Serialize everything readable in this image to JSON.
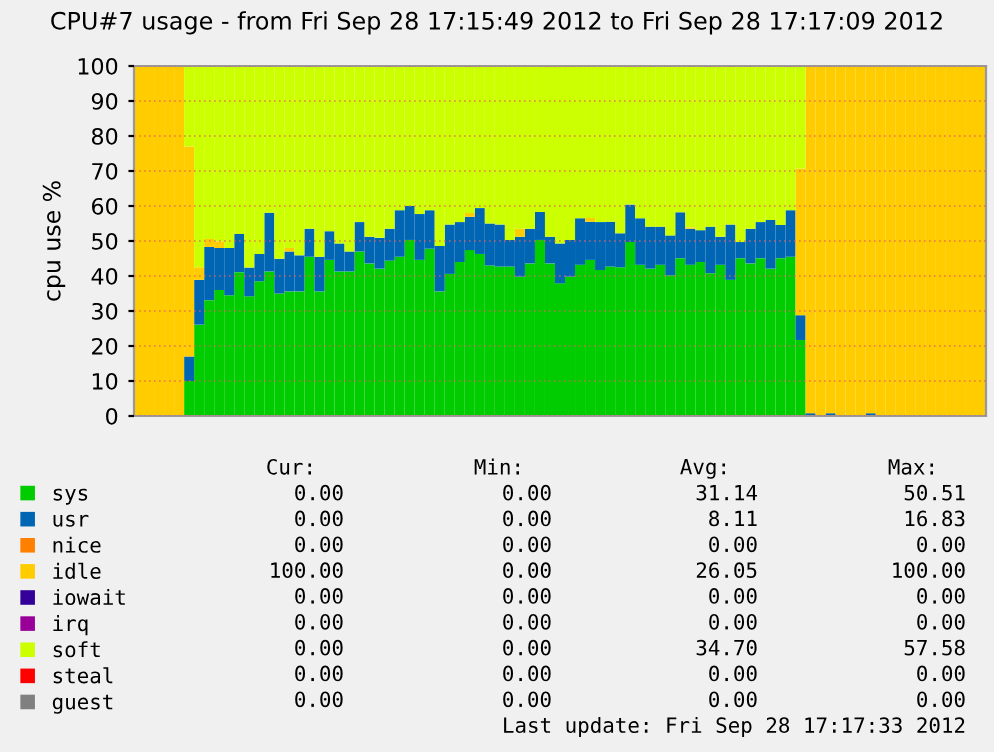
{
  "chart_data": {
    "type": "bar",
    "stacked": true,
    "title": "CPU#7 usage - from Fri Sep 28 17:15:49 2012 to Fri Sep 28 17:17:09 2012",
    "ylabel": "cpu use %",
    "categories": [
      null,
      null,
      null,
      null,
      null,
      null,
      null,
      null,
      null,
      null,
      null,
      null,
      null,
      null,
      null,
      null,
      null,
      null,
      null,
      null,
      null,
      null,
      null,
      null,
      null,
      null,
      null,
      null,
      null,
      null,
      null,
      null,
      null,
      null,
      null,
      null,
      null,
      null,
      null,
      null,
      null,
      null,
      null,
      null,
      null,
      null,
      null,
      null,
      null,
      null,
      null,
      null,
      null,
      null,
      null,
      null,
      null,
      null,
      null,
      null,
      null,
      null,
      null,
      null,
      null,
      null,
      null,
      null,
      null,
      null,
      null,
      null,
      null,
      null,
      null,
      null,
      null,
      null,
      null,
      null,
      null,
      null,
      null,
      null,
      null
    ],
    "ylim": [
      0,
      100
    ],
    "yticks": [
      0,
      10,
      20,
      30,
      40,
      50,
      60,
      70,
      80,
      90,
      100
    ],
    "grid": "y",
    "legend": "bottom left",
    "series": [
      {
        "name": "sys",
        "color": "#00cc00",
        "values": [
          0,
          0,
          0,
          0,
          0,
          10,
          26.1,
          33.1,
          36.0,
          34.5,
          41.1,
          34.2,
          38.5,
          41.3,
          35.0,
          35.6,
          35.6,
          45.5,
          35.6,
          44.6,
          41.3,
          41.3,
          47.0,
          43.6,
          42.1,
          44.4,
          45.5,
          50.3,
          44.6,
          47.8,
          35.6,
          40.6,
          44.0,
          47.4,
          46.3,
          43.0,
          42.7,
          42.7,
          39.8,
          43.6,
          50.3,
          43.6,
          37.9,
          39.8,
          43.2,
          44.6,
          41.7,
          42.7,
          42.5,
          49.7,
          43.2,
          42.1,
          43.2,
          40.2,
          45.1,
          43.2,
          44.0,
          40.8,
          43.2,
          38.9,
          45.1,
          43.6,
          45.1,
          42.1,
          45.1,
          45.5,
          21.7,
          0,
          0,
          0,
          0,
          0,
          0,
          0,
          0,
          0,
          0,
          0,
          0,
          0,
          0,
          0,
          0,
          0,
          0
        ]
      },
      {
        "name": "usr",
        "color": "#0066b3",
        "values": [
          0,
          0,
          0,
          0,
          0,
          7,
          12.8,
          15.2,
          12.0,
          13.5,
          10.9,
          8.2,
          7.8,
          16.8,
          9.9,
          11.4,
          10.3,
          8.0,
          9.9,
          8.2,
          8.0,
          5.7,
          8.4,
          7.6,
          8.8,
          9.1,
          13.3,
          9.7,
          13.1,
          11.0,
          13.0,
          14.1,
          11.4,
          9.5,
          13.1,
          12.0,
          12.0,
          7.6,
          11.4,
          9.9,
          8.0,
          7.6,
          11.4,
          10.5,
          13.3,
          10.9,
          13.7,
          12.8,
          9.7,
          10.7,
          13.3,
          12.0,
          10.9,
          11.4,
          13.1,
          10.3,
          9.1,
          13.3,
          8.0,
          15.8,
          4.6,
          9.9,
          10.3,
          13.9,
          9.5,
          13.3,
          7.1,
          0.8,
          0,
          0.8,
          0,
          0,
          0,
          0.8,
          0,
          0,
          0,
          0,
          0,
          0,
          0,
          0,
          0,
          0,
          0
        ]
      },
      {
        "name": "nice",
        "color": "#ff8000",
        "values": [
          0,
          0,
          0,
          0,
          0,
          0,
          0,
          0,
          0,
          0,
          0,
          0,
          0,
          0,
          0,
          0,
          0,
          0,
          0,
          0,
          0,
          0,
          0,
          0,
          0,
          0,
          0,
          0,
          0,
          0,
          0,
          0,
          0,
          0,
          0,
          0,
          0,
          0,
          0,
          0,
          0,
          0,
          0,
          0,
          0,
          0,
          0,
          0,
          0,
          0,
          0,
          0,
          0,
          0,
          0,
          0,
          0,
          0,
          0,
          0,
          0,
          0,
          0,
          0,
          0,
          0,
          0,
          0,
          0,
          0,
          0,
          0,
          0,
          0,
          0,
          0,
          0,
          0,
          0,
          0,
          0,
          0,
          0,
          0,
          0
        ]
      },
      {
        "name": "idle",
        "color": "#ffcc00",
        "values": [
          100,
          100,
          100,
          100,
          100,
          60,
          3.6,
          2.3,
          1.9,
          0,
          0,
          0,
          0,
          0,
          0,
          1.0,
          0,
          0,
          0,
          0,
          0,
          0,
          0,
          0,
          0,
          0,
          0,
          0,
          0,
          0,
          0,
          0,
          0,
          1.1,
          0,
          0,
          0,
          0,
          2.3,
          0,
          0,
          0,
          0,
          0,
          0,
          1.1,
          0,
          0,
          0,
          0,
          0,
          0,
          0,
          0,
          0,
          0.4,
          0,
          0,
          0,
          0,
          0,
          0,
          0,
          0,
          0,
          0,
          41.9,
          99.2,
          100,
          99.2,
          100,
          100,
          100,
          99.2,
          100,
          100,
          100,
          100,
          100,
          100,
          100,
          100,
          100,
          100,
          100
        ]
      },
      {
        "name": "iowait",
        "color": "#330099",
        "values": [
          0,
          0,
          0,
          0,
          0,
          0,
          0,
          0,
          0,
          0,
          0,
          0,
          0,
          0,
          0,
          0,
          0,
          0,
          0,
          0,
          0,
          0,
          0,
          0,
          0,
          0,
          0,
          0,
          0,
          0,
          0,
          0,
          0,
          0,
          0,
          0,
          0,
          0,
          0,
          0,
          0,
          0,
          0,
          0,
          0,
          0,
          0,
          0,
          0,
          0,
          0,
          0,
          0,
          0,
          0,
          0,
          0,
          0,
          0,
          0,
          0,
          0,
          0,
          0,
          0,
          0,
          0,
          0,
          0,
          0,
          0,
          0,
          0,
          0,
          0,
          0,
          0,
          0,
          0,
          0,
          0,
          0,
          0,
          0,
          0
        ]
      },
      {
        "name": "irq",
        "color": "#990099",
        "values": [
          0,
          0,
          0,
          0,
          0,
          0,
          0,
          0,
          0,
          0,
          0,
          0,
          0,
          0,
          0,
          0,
          0,
          0,
          0,
          0,
          0,
          0,
          0,
          0,
          0,
          0,
          0,
          0,
          0,
          0,
          0,
          0,
          0,
          0,
          0,
          0,
          0,
          0,
          0,
          0,
          0,
          0,
          0,
          0,
          0,
          0,
          0,
          0,
          0,
          0,
          0,
          0,
          0,
          0,
          0,
          0,
          0,
          0,
          0,
          0,
          0,
          0,
          0,
          0,
          0,
          0,
          0,
          0,
          0,
          0,
          0,
          0,
          0,
          0,
          0,
          0,
          0,
          0,
          0,
          0,
          0,
          0,
          0,
          0,
          0
        ]
      },
      {
        "name": "soft",
        "color": "#ccff00",
        "values": [
          0,
          0,
          0,
          0,
          0,
          23,
          57.5,
          49.3,
          50.1,
          52.0,
          48.0,
          57.5,
          53.7,
          41.9,
          55.1,
          52.0,
          54.1,
          46.5,
          54.5,
          47.2,
          50.7,
          53.0,
          44.6,
          48.8,
          49.1,
          46.5,
          41.2,
          40.0,
          42.3,
          41.2,
          51.4,
          45.3,
          44.6,
          42.0,
          40.6,
          45.0,
          45.3,
          49.7,
          46.5,
          46.5,
          41.7,
          48.8,
          50.7,
          49.7,
          43.5,
          43.4,
          44.6,
          44.5,
          47.8,
          39.6,
          43.5,
          45.9,
          45.9,
          48.4,
          41.8,
          46.1,
          46.9,
          45.9,
          48.8,
          45.3,
          50.3,
          46.5,
          44.6,
          44.0,
          45.4,
          41.2,
          29.3,
          0,
          0,
          0,
          0,
          0,
          0,
          0,
          0,
          0,
          0,
          0,
          0,
          0,
          0,
          0,
          0,
          0,
          0
        ]
      },
      {
        "name": "steal",
        "color": "#ff0000",
        "values": [
          0,
          0,
          0,
          0,
          0,
          0,
          0,
          0,
          0,
          0,
          0,
          0,
          0,
          0,
          0,
          0,
          0,
          0,
          0,
          0,
          0,
          0,
          0,
          0,
          0,
          0,
          0,
          0,
          0,
          0,
          0,
          0,
          0,
          0,
          0,
          0,
          0,
          0,
          0,
          0,
          0,
          0,
          0,
          0,
          0,
          0,
          0,
          0,
          0,
          0,
          0,
          0,
          0,
          0,
          0,
          0,
          0,
          0,
          0,
          0,
          0,
          0,
          0,
          0,
          0,
          0,
          0,
          0,
          0,
          0,
          0,
          0,
          0,
          0,
          0,
          0,
          0,
          0,
          0,
          0,
          0,
          0,
          0,
          0,
          0
        ]
      },
      {
        "name": "guest",
        "color": "#808080",
        "values": [
          0,
          0,
          0,
          0,
          0,
          0,
          0,
          0,
          0,
          0,
          0,
          0,
          0,
          0,
          0,
          0,
          0,
          0,
          0,
          0,
          0,
          0,
          0,
          0,
          0,
          0,
          0,
          0,
          0,
          0,
          0,
          0,
          0,
          0,
          0,
          0,
          0,
          0,
          0,
          0,
          0,
          0,
          0,
          0,
          0,
          0,
          0,
          0,
          0,
          0,
          0,
          0,
          0,
          0,
          0,
          0,
          0,
          0,
          0,
          0,
          0,
          0,
          0,
          0,
          0,
          0,
          0,
          0,
          0,
          0,
          0,
          0,
          0,
          0,
          0,
          0,
          0,
          0,
          0,
          0,
          0,
          0,
          0,
          0,
          0
        ]
      }
    ],
    "annotations": [
      "Cur:",
      "Min:",
      "Avg:",
      "Max:",
      "0.00",
      "0.00",
      "31.14",
      "50.51",
      "0.00",
      "0.00",
      "8.11",
      "16.83",
      "0.00",
      "0.00",
      "0.00",
      "0.00",
      "100.00",
      "0.00",
      "26.05",
      "100.00",
      "0.00",
      "0.00",
      "0.00",
      "0.00",
      "0.00",
      "0.00",
      "0.00",
      "0.00",
      "0.00",
      "0.00",
      "34.70",
      "57.58",
      "0.00",
      "0.00",
      "0.00",
      "0.00",
      "0.00",
      "0.00",
      "0.00",
      "0.00",
      "Last update: Fri Sep 28 17:17:33 2012"
    ]
  }
}
